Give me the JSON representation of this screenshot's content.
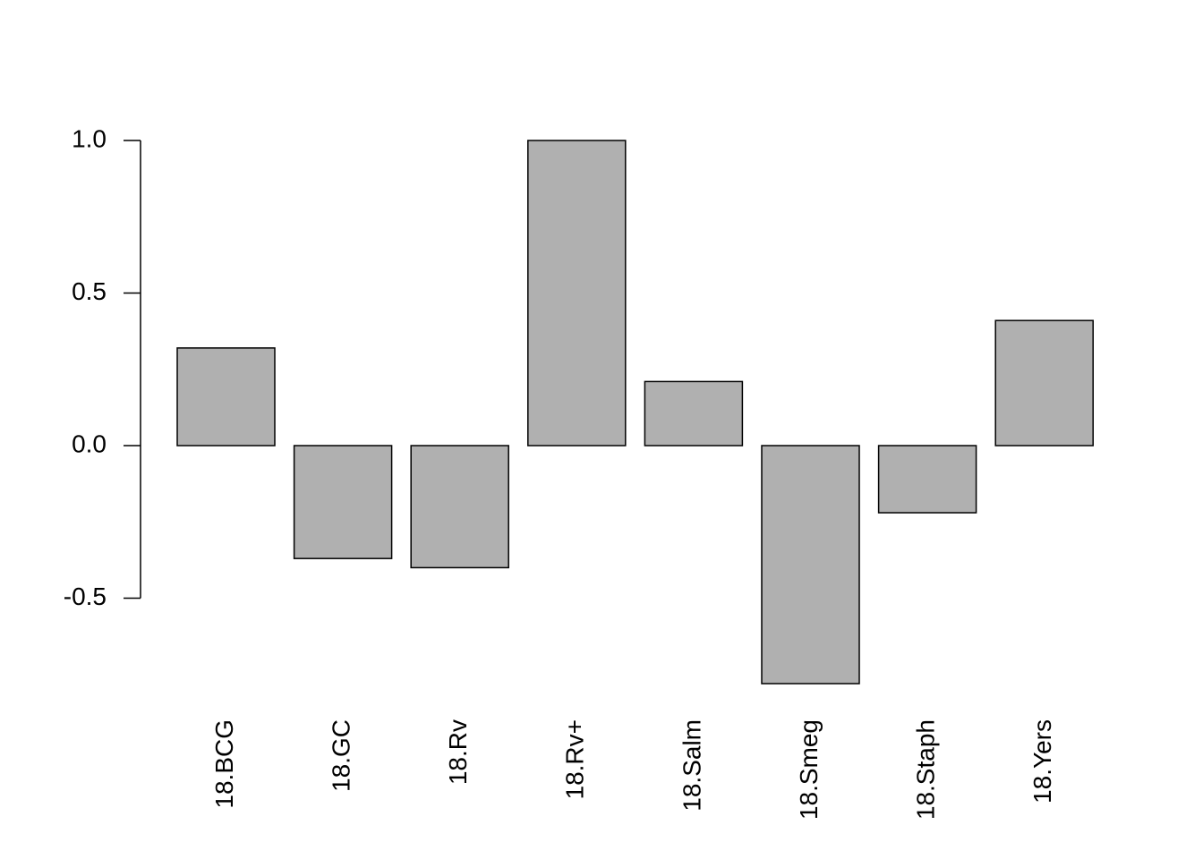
{
  "chart_data": {
    "type": "bar",
    "categories": [
      "18.BCG",
      "18.GC",
      "18.Rv",
      "18.Rv+",
      "18.Salm",
      "18.Smeg",
      "18.Staph",
      "18.Yers"
    ],
    "values": [
      0.32,
      -0.37,
      -0.4,
      1.0,
      0.21,
      -0.78,
      -0.22,
      0.41
    ],
    "color": "#b0b0b0",
    "ylim": [
      -0.78,
      1.0
    ],
    "yticks": [
      -0.5,
      {
        "value": 0,
        "label": "0.0"
      },
      0.5,
      {
        "value": 1,
        "label": "1.0"
      }
    ],
    "grid": false
  }
}
